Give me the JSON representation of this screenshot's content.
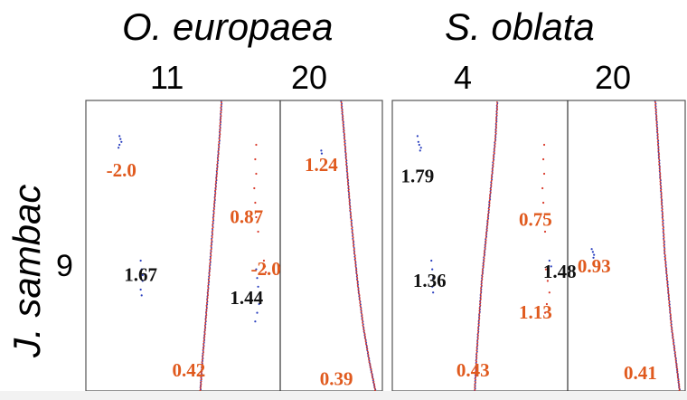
{
  "chart_data": {
    "type": "scatter",
    "description": "Dot-plot grid of syntenic gene pairs with Ks values",
    "column_species": [
      {
        "name": "O. europaea",
        "chromosomes": [
          "11",
          "20"
        ]
      },
      {
        "name": "S. oblata",
        "chromosomes": [
          "4",
          "20"
        ]
      }
    ],
    "row_species": {
      "name": "J. sambac",
      "chromosomes": [
        "9"
      ]
    },
    "colors": {
      "red": "#d93a2b",
      "blue": "#2a3fbf",
      "orange": "#e05a1e",
      "black": "#111111"
    },
    "panels": [
      {
        "id": "oe-11",
        "xrange": [
          0,
          100
        ],
        "yrange": [
          0,
          100
        ],
        "blocks": [
          {
            "points": [
              [
                17,
                12
              ],
              [
                17.5,
                13
              ],
              [
                18,
                14
              ],
              [
                17,
                15
              ],
              [
                16.5,
                16
              ]
            ],
            "color": "blue",
            "label": "-2.0",
            "lx": 18,
            "ly": 26,
            "lcolor": "orange"
          },
          {
            "points": [
              [
                28,
                55
              ],
              [
                28.5,
                58
              ],
              [
                29,
                62
              ],
              [
                28,
                65
              ],
              [
                28.5,
                67
              ],
              [
                29,
                60
              ]
            ],
            "color": "blue",
            "label": "1.67",
            "lx": 28,
            "ly": 62,
            "lcolor": "black"
          },
          {
            "points": [
              [
                88,
                15
              ],
              [
                87.5,
                20
              ],
              [
                88,
                25
              ],
              [
                87,
                30
              ],
              [
                87.5,
                35
              ],
              [
                88,
                40
              ],
              [
                89,
                45
              ]
            ],
            "color": "red",
            "label": "0.87",
            "lx": 83,
            "ly": 42,
            "lcolor": "orange"
          },
          {
            "points": [
              [
                88,
                58
              ],
              [
                88.5,
                61
              ],
              [
                89,
                64
              ],
              [
                90,
                67
              ],
              [
                89.5,
                70
              ],
              [
                88.5,
                73
              ],
              [
                87.5,
                76
              ]
            ],
            "color": "blue",
            "label": "1.44",
            "lx": 83,
            "ly": 70,
            "lcolor": "black"
          },
          {
            "points": [
              [
                92,
                55
              ],
              [
                92.5,
                57
              ],
              [
                93,
                59
              ]
            ],
            "color": "red",
            "label": "-2.0",
            "lx": 93,
            "ly": 60,
            "lcolor": "orange"
          },
          {
            "points": [
              [
                70,
                0
              ],
              [
                69,
                12
              ],
              [
                67.5,
                25
              ],
              [
                66,
                38
              ],
              [
                64.5,
                52
              ],
              [
                63,
                65
              ],
              [
                61.5,
                78
              ],
              [
                60,
                90
              ],
              [
                59,
                100
              ]
            ],
            "color": "diag",
            "label": "0.42",
            "lx": 53,
            "ly": 95,
            "lcolor": "orange"
          }
        ]
      },
      {
        "id": "oe-20",
        "xrange": [
          0,
          100
        ],
        "yrange": [
          0,
          100
        ],
        "blocks": [
          {
            "points": [
              [
                40,
                17
              ],
              [
                40.5,
                18
              ]
            ],
            "color": "blue",
            "label": "1.24",
            "lx": 40,
            "ly": 24,
            "lcolor": "orange"
          },
          {
            "points": [
              [
                60,
                0
              ],
              [
                63,
                12
              ],
              [
                66,
                25
              ],
              [
                69,
                38
              ],
              [
                73,
                52
              ],
              [
                77,
                65
              ],
              [
                82,
                78
              ],
              [
                88,
                90
              ],
              [
                94,
                100
              ]
            ],
            "color": "diag",
            "label": "0.39",
            "lx": 55,
            "ly": 98,
            "lcolor": "orange"
          }
        ]
      },
      {
        "id": "so-4",
        "xrange": [
          0,
          100
        ],
        "yrange": [
          0,
          100
        ],
        "blocks": [
          {
            "points": [
              [
                14,
                12
              ],
              [
                14.5,
                14
              ],
              [
                15,
                15
              ],
              [
                16,
                16
              ],
              [
                15.5,
                17
              ]
            ],
            "color": "blue",
            "label": "1.79",
            "lx": 14,
            "ly": 28,
            "lcolor": "black"
          },
          {
            "points": [
              [
                22,
                55
              ],
              [
                22.5,
                58
              ],
              [
                23,
                61
              ],
              [
                22.5,
                64
              ],
              [
                23,
                66
              ]
            ],
            "color": "blue",
            "label": "1.36",
            "lx": 21,
            "ly": 64,
            "lcolor": "black"
          },
          {
            "points": [
              [
                87,
                15
              ],
              [
                86.5,
                20
              ],
              [
                87,
                25
              ],
              [
                86,
                30
              ],
              [
                86.5,
                35
              ],
              [
                87,
                40
              ],
              [
                87.5,
                45
              ]
            ],
            "color": "red",
            "label": "0.75",
            "lx": 82,
            "ly": 43,
            "lcolor": "orange"
          },
          {
            "points": [
              [
                88,
                58
              ],
              [
                89,
                62
              ],
              [
                90,
                66
              ],
              [
                88.5,
                70
              ],
              [
                87.5,
                73
              ]
            ],
            "color": "red",
            "label": "1.13",
            "lx": 82,
            "ly": 75,
            "lcolor": "orange"
          },
          {
            "points": [
              [
                90,
                55
              ],
              [
                91,
                57
              ]
            ],
            "color": "blue",
            "label": "1.48",
            "lx": 96,
            "ly": 61,
            "lcolor": "black"
          },
          {
            "points": [
              [
                47,
                100
              ],
              [
                48,
                88
              ],
              [
                49.5,
                75
              ],
              [
                51,
                62
              ],
              [
                53,
                50
              ],
              [
                55,
                38
              ],
              [
                57,
                25
              ],
              [
                59,
                12
              ],
              [
                60,
                0
              ]
            ],
            "color": "diag",
            "label": "0.43",
            "lx": 46,
            "ly": 95,
            "lcolor": "orange"
          }
        ]
      },
      {
        "id": "so-20",
        "xrange": [
          0,
          100
        ],
        "yrange": [
          0,
          100
        ],
        "blocks": [
          {
            "points": [
              [
                20,
                51
              ],
              [
                21,
                52
              ],
              [
                22,
                53
              ],
              [
                21.5,
                54
              ]
            ],
            "color": "blue",
            "label": "0.93",
            "lx": 22,
            "ly": 59,
            "lcolor": "orange"
          },
          {
            "points": [
              [
                75,
                0
              ],
              [
                77,
                12
              ],
              [
                79,
                25
              ],
              [
                81,
                38
              ],
              [
                83,
                52
              ],
              [
                86,
                65
              ],
              [
                89,
                78
              ],
              [
                93,
                90
              ],
              [
                96,
                100
              ]
            ],
            "color": "diag",
            "label": "0.41",
            "lx": 62,
            "ly": 96,
            "lcolor": "orange"
          }
        ]
      }
    ]
  }
}
